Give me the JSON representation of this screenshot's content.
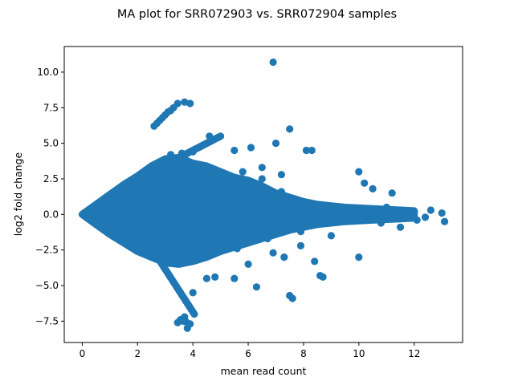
{
  "chart_data": {
    "type": "scatter",
    "title": "MA plot for SRR072903 vs. SRR072904 samples",
    "xlabel": "mean read count",
    "ylabel": "log2 fold change",
    "xlim": [
      -0.65,
      13.75
    ],
    "ylim": [
      -9.0,
      11.8
    ],
    "xticks": [
      0,
      2,
      4,
      6,
      8,
      10,
      12
    ],
    "yticks": [
      -7.5,
      -5.0,
      -2.5,
      0.0,
      2.5,
      5.0,
      7.5,
      10.0
    ],
    "xtick_labels": [
      "0",
      "2",
      "4",
      "6",
      "8",
      "10",
      "12"
    ],
    "ytick_labels": [
      "−7.5",
      "−5.0",
      "−2.5",
      "0.0",
      "2.5",
      "5.0",
      "7.5",
      "10.0"
    ],
    "grid": false,
    "marker_color": "#1f77b4",
    "dense_band": {
      "note_free": true,
      "upper_edge": [
        [
          0,
          0
        ],
        [
          0.5,
          0.7
        ],
        [
          1,
          1.4
        ],
        [
          1.5,
          2.1
        ],
        [
          2,
          2.7
        ],
        [
          2.5,
          3.4
        ],
        [
          3,
          3.9
        ],
        [
          3.5,
          4.0
        ],
        [
          4,
          3.6
        ],
        [
          4.5,
          3.4
        ],
        [
          5,
          3.0
        ],
        [
          5.5,
          2.6
        ],
        [
          6,
          2.4
        ],
        [
          6.5,
          2.0
        ],
        [
          7,
          1.5
        ],
        [
          7.5,
          1.2
        ],
        [
          8,
          0.9
        ],
        [
          8.5,
          0.7
        ],
        [
          9,
          0.6
        ],
        [
          9.5,
          0.5
        ],
        [
          10,
          0.45
        ],
        [
          10.5,
          0.4
        ],
        [
          11,
          0.35
        ],
        [
          11.5,
          0.3
        ],
        [
          12,
          0.25
        ]
      ],
      "lower_edge": [
        [
          0,
          0
        ],
        [
          0.5,
          -0.7
        ],
        [
          1,
          -1.4
        ],
        [
          1.5,
          -2.0
        ],
        [
          2,
          -2.6
        ],
        [
          2.5,
          -3.0
        ],
        [
          3,
          -3.4
        ],
        [
          3.5,
          -3.5
        ],
        [
          4,
          -3.3
        ],
        [
          4.5,
          -3.0
        ],
        [
          5,
          -2.6
        ],
        [
          5.5,
          -2.3
        ],
        [
          6,
          -2.0
        ],
        [
          6.5,
          -1.7
        ],
        [
          7,
          -1.4
        ],
        [
          7.5,
          -1.1
        ],
        [
          8,
          -0.9
        ],
        [
          8.5,
          -0.7
        ],
        [
          9,
          -0.6
        ],
        [
          9.5,
          -0.5
        ],
        [
          10,
          -0.45
        ],
        [
          10.5,
          -0.4
        ],
        [
          11,
          -0.35
        ],
        [
          11.5,
          -0.3
        ],
        [
          12,
          -0.25
        ]
      ]
    },
    "points": [
      [
        0.05,
        0.02
      ],
      [
        0.1,
        -0.05
      ],
      [
        0.2,
        0.1
      ],
      [
        0.25,
        -0.15
      ],
      [
        0.4,
        0.45
      ],
      [
        0.6,
        0.7
      ],
      [
        0.8,
        0.9
      ],
      [
        1.0,
        1.1
      ],
      [
        1.2,
        1.35
      ],
      [
        1.4,
        1.55
      ],
      [
        1.6,
        1.8
      ],
      [
        1.8,
        2.05
      ],
      [
        2.0,
        2.3
      ],
      [
        2.2,
        2.5
      ],
      [
        2.4,
        2.75
      ],
      [
        2.6,
        3.0
      ],
      [
        2.8,
        3.25
      ],
      [
        3.0,
        3.5
      ],
      [
        3.1,
        3.6
      ],
      [
        3.2,
        3.7
      ],
      [
        3.3,
        3.8
      ],
      [
        3.4,
        3.9
      ],
      [
        3.5,
        4.0
      ],
      [
        3.55,
        4.05
      ],
      [
        3.6,
        4.1
      ],
      [
        3.65,
        4.15
      ],
      [
        3.7,
        4.2
      ],
      [
        3.75,
        4.25
      ],
      [
        3.8,
        4.3
      ],
      [
        3.85,
        4.35
      ],
      [
        3.9,
        4.4
      ],
      [
        3.95,
        4.45
      ],
      [
        4.0,
        4.5
      ],
      [
        4.05,
        4.55
      ],
      [
        4.1,
        4.6
      ],
      [
        4.15,
        4.65
      ],
      [
        4.2,
        4.7
      ],
      [
        4.25,
        4.75
      ],
      [
        4.3,
        4.8
      ],
      [
        4.35,
        4.85
      ],
      [
        4.4,
        4.9
      ],
      [
        4.45,
        4.95
      ],
      [
        4.5,
        5.0
      ],
      [
        4.55,
        5.05
      ],
      [
        4.6,
        5.1
      ],
      [
        4.65,
        5.15
      ],
      [
        4.7,
        5.2
      ],
      [
        4.75,
        5.25
      ],
      [
        4.8,
        5.3
      ],
      [
        4.85,
        5.35
      ],
      [
        4.9,
        5.4
      ],
      [
        4.95,
        5.45
      ],
      [
        5.0,
        5.5
      ],
      [
        0.4,
        -0.45
      ],
      [
        0.6,
        -0.7
      ],
      [
        0.8,
        -0.9
      ],
      [
        1.0,
        -1.1
      ],
      [
        1.2,
        -1.35
      ],
      [
        1.4,
        -1.55
      ],
      [
        1.6,
        -1.8
      ],
      [
        1.8,
        -2.05
      ],
      [
        2.0,
        -2.3
      ],
      [
        2.2,
        -2.5
      ],
      [
        2.4,
        -2.75
      ],
      [
        2.6,
        -3.0
      ],
      [
        2.8,
        -3.25
      ],
      [
        3.0,
        -3.5
      ],
      [
        2.85,
        -3.4
      ],
      [
        2.9,
        -3.55
      ],
      [
        2.95,
        -3.7
      ],
      [
        3.0,
        -3.85
      ],
      [
        3.05,
        -4.0
      ],
      [
        3.1,
        -4.15
      ],
      [
        3.15,
        -4.3
      ],
      [
        3.2,
        -4.45
      ],
      [
        3.25,
        -4.6
      ],
      [
        3.3,
        -4.75
      ],
      [
        3.35,
        -4.9
      ],
      [
        3.4,
        -5.05
      ],
      [
        3.45,
        -5.2
      ],
      [
        3.5,
        -5.35
      ],
      [
        3.55,
        -5.5
      ],
      [
        3.6,
        -5.65
      ],
      [
        3.65,
        -5.8
      ],
      [
        3.7,
        -5.95
      ],
      [
        3.75,
        -6.1
      ],
      [
        3.8,
        -6.25
      ],
      [
        3.85,
        -6.4
      ],
      [
        3.9,
        -6.55
      ],
      [
        3.95,
        -6.7
      ],
      [
        4.0,
        -6.85
      ],
      [
        4.05,
        -7.0
      ],
      [
        2.6,
        6.2
      ],
      [
        2.7,
        6.4
      ],
      [
        2.8,
        6.6
      ],
      [
        2.9,
        6.8
      ],
      [
        3.0,
        7.0
      ],
      [
        3.1,
        7.2
      ],
      [
        3.2,
        7.3
      ],
      [
        3.3,
        7.5
      ],
      [
        3.45,
        7.8
      ],
      [
        3.7,
        7.9
      ],
      [
        3.9,
        7.8
      ],
      [
        3.45,
        -7.6
      ],
      [
        3.55,
        -7.4
      ],
      [
        3.65,
        -7.5
      ],
      [
        3.7,
        -7.2
      ],
      [
        3.75,
        -7.55
      ],
      [
        3.8,
        -8.0
      ],
      [
        3.9,
        -7.7
      ],
      [
        3.2,
        4.2
      ],
      [
        3.6,
        4.3
      ],
      [
        4.0,
        4.4
      ],
      [
        4.6,
        5.5
      ],
      [
        5.5,
        4.5
      ],
      [
        5.8,
        3.0
      ],
      [
        6.1,
        4.7
      ],
      [
        6.5,
        3.3
      ],
      [
        6.5,
        2.5
      ],
      [
        7.0,
        5.0
      ],
      [
        7.2,
        2.8
      ],
      [
        7.5,
        6.0
      ],
      [
        8.1,
        4.5
      ],
      [
        8.3,
        4.5
      ],
      [
        10.0,
        3.0
      ],
      [
        10.2,
        2.2
      ],
      [
        10.5,
        1.8
      ],
      [
        11.2,
        1.5
      ],
      [
        6.9,
        10.7
      ],
      [
        7.2,
        1.6
      ],
      [
        7.9,
        -2.2
      ],
      [
        8.4,
        -3.3
      ],
      [
        8.6,
        -4.3
      ],
      [
        8.7,
        -4.4
      ],
      [
        10.0,
        -3.0
      ],
      [
        9.0,
        -1.5
      ],
      [
        11.5,
        -0.9
      ],
      [
        5.5,
        -4.5
      ],
      [
        4.0,
        -5.5
      ],
      [
        4.5,
        -4.5
      ],
      [
        4.8,
        -4.4
      ],
      [
        6.0,
        -3.5
      ],
      [
        6.3,
        -5.1
      ],
      [
        6.9,
        -2.7
      ],
      [
        7.3,
        -3.0
      ],
      [
        7.5,
        -5.7
      ],
      [
        7.6,
        -5.9
      ],
      [
        5.6,
        -2.4
      ],
      [
        6.7,
        -1.7
      ],
      [
        7.9,
        -1.2
      ],
      [
        12.0,
        0.2
      ],
      [
        12.1,
        -0.4
      ],
      [
        12.4,
        -0.2
      ],
      [
        13.0,
        0.1
      ],
      [
        13.1,
        -0.5
      ],
      [
        12.6,
        0.3
      ],
      [
        11.8,
        0.2
      ],
      [
        11.0,
        0.5
      ],
      [
        10.8,
        -0.6
      ]
    ]
  }
}
